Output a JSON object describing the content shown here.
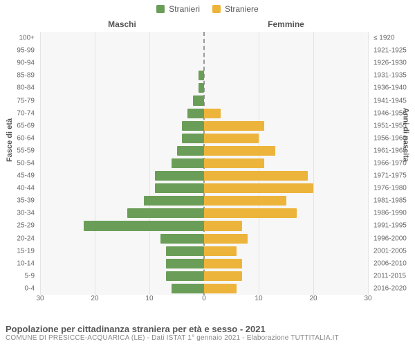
{
  "legend": {
    "male": "Stranieri",
    "female": "Straniere"
  },
  "columns": {
    "left": "Maschi",
    "right": "Femmine"
  },
  "axis_titles": {
    "left": "Fasce di età",
    "right": "Anni di nascita"
  },
  "colors": {
    "male": "#6a9e58",
    "female": "#edb43b",
    "grid": "#e4e4e4",
    "plot_bg": "#f7f7f7",
    "axis_dash": "#999999",
    "text": "#555555"
  },
  "chart": {
    "type": "population-pyramid",
    "x_max": 30,
    "x_ticks": [
      30,
      20,
      10,
      0,
      10,
      20,
      30
    ],
    "bar_height_ratio": 0.78,
    "rows": [
      {
        "age": "100+",
        "birth": "≤ 1920",
        "male": 0,
        "female": 0
      },
      {
        "age": "95-99",
        "birth": "1921-1925",
        "male": 0,
        "female": 0
      },
      {
        "age": "90-94",
        "birth": "1926-1930",
        "male": 0,
        "female": 0
      },
      {
        "age": "85-89",
        "birth": "1931-1935",
        "male": 1,
        "female": 0
      },
      {
        "age": "80-84",
        "birth": "1936-1940",
        "male": 1,
        "female": 0
      },
      {
        "age": "75-79",
        "birth": "1941-1945",
        "male": 2,
        "female": 0
      },
      {
        "age": "70-74",
        "birth": "1946-1950",
        "male": 3,
        "female": 3
      },
      {
        "age": "65-69",
        "birth": "1951-1955",
        "male": 4,
        "female": 11
      },
      {
        "age": "60-64",
        "birth": "1956-1960",
        "male": 4,
        "female": 10
      },
      {
        "age": "55-59",
        "birth": "1961-1965",
        "male": 5,
        "female": 13
      },
      {
        "age": "50-54",
        "birth": "1966-1970",
        "male": 6,
        "female": 11
      },
      {
        "age": "45-49",
        "birth": "1971-1975",
        "male": 9,
        "female": 19
      },
      {
        "age": "40-44",
        "birth": "1976-1980",
        "male": 9,
        "female": 20
      },
      {
        "age": "35-39",
        "birth": "1981-1985",
        "male": 11,
        "female": 15
      },
      {
        "age": "30-34",
        "birth": "1986-1990",
        "male": 14,
        "female": 17
      },
      {
        "age": "25-29",
        "birth": "1991-1995",
        "male": 22,
        "female": 7
      },
      {
        "age": "20-24",
        "birth": "1996-2000",
        "male": 8,
        "female": 8
      },
      {
        "age": "15-19",
        "birth": "2001-2005",
        "male": 7,
        "female": 6
      },
      {
        "age": "10-14",
        "birth": "2006-2010",
        "male": 7,
        "female": 7
      },
      {
        "age": "5-9",
        "birth": "2011-2015",
        "male": 7,
        "female": 7
      },
      {
        "age": "0-4",
        "birth": "2016-2020",
        "male": 6,
        "female": 6
      }
    ]
  },
  "footer": {
    "title": "Popolazione per cittadinanza straniera per età e sesso - 2021",
    "sub": "COMUNE DI PRESICCE-ACQUARICA (LE) - Dati ISTAT 1° gennaio 2021 - Elaborazione TUTTITALIA.IT"
  }
}
